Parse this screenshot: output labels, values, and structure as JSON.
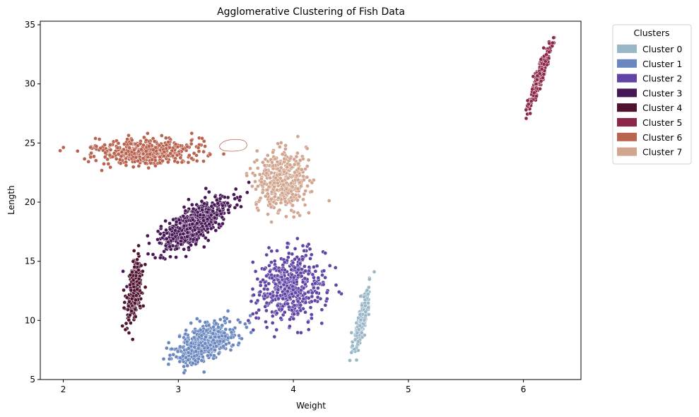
{
  "chart_data": {
    "type": "scatter",
    "title": "Agglomerative Clustering of Fish Data",
    "xlabel": "Weight",
    "ylabel": "Length",
    "xlim": [
      1.8,
      6.5
    ],
    "ylim": [
      5,
      35.3
    ],
    "xticks": [
      2,
      3,
      4,
      5,
      6
    ],
    "yticks": [
      5,
      10,
      15,
      20,
      25,
      30,
      35
    ],
    "grid": false,
    "legend": {
      "title": "Clusters",
      "placement": "outside-right"
    },
    "series": [
      {
        "name": "Cluster 0",
        "color": "#9ab7c7",
        "cloud": {
          "cx": 4.59,
          "cy": 10.0,
          "sx": 0.035,
          "sy": 1.35,
          "rho": 0.8,
          "n": 220
        }
      },
      {
        "name": "Cluster 1",
        "color": "#6a87c0",
        "cloud": {
          "cx": 3.25,
          "cy": 8.2,
          "sx": 0.13,
          "sy": 0.9,
          "rho": 0.55,
          "n": 520
        }
      },
      {
        "name": "Cluster 2",
        "color": "#6045a6",
        "cloud": {
          "cx": 3.98,
          "cy": 12.8,
          "sx": 0.15,
          "sy": 1.45,
          "rho": 0.1,
          "n": 480
        }
      },
      {
        "name": "Cluster 3",
        "color": "#461655",
        "cloud": {
          "cx": 3.14,
          "cy": 18.1,
          "sx": 0.15,
          "sy": 1.1,
          "rho": 0.72,
          "n": 640
        }
      },
      {
        "name": "Cluster 4",
        "color": "#4f1330",
        "cloud": {
          "cx": 2.62,
          "cy": 12.6,
          "sx": 0.035,
          "sy": 1.35,
          "rho": 0.45,
          "n": 260
        }
      },
      {
        "name": "Cluster 5",
        "color": "#8c2747",
        "cloud": {
          "cx": 6.15,
          "cy": 30.9,
          "sx": 0.05,
          "sy": 1.35,
          "rho": 0.92,
          "n": 240
        }
      },
      {
        "name": "Cluster 6",
        "color": "#b9624e",
        "cloud": {
          "cx": 2.7,
          "cy": 24.3,
          "sx": 0.22,
          "sy": 0.55,
          "rho": 0.0,
          "n": 450
        }
      },
      {
        "name": "Cluster 7",
        "color": "#d2a58f",
        "cloud": {
          "cx": 3.9,
          "cy": 21.8,
          "sx": 0.11,
          "sy": 1.25,
          "rho": 0.0,
          "n": 420
        }
      }
    ]
  }
}
